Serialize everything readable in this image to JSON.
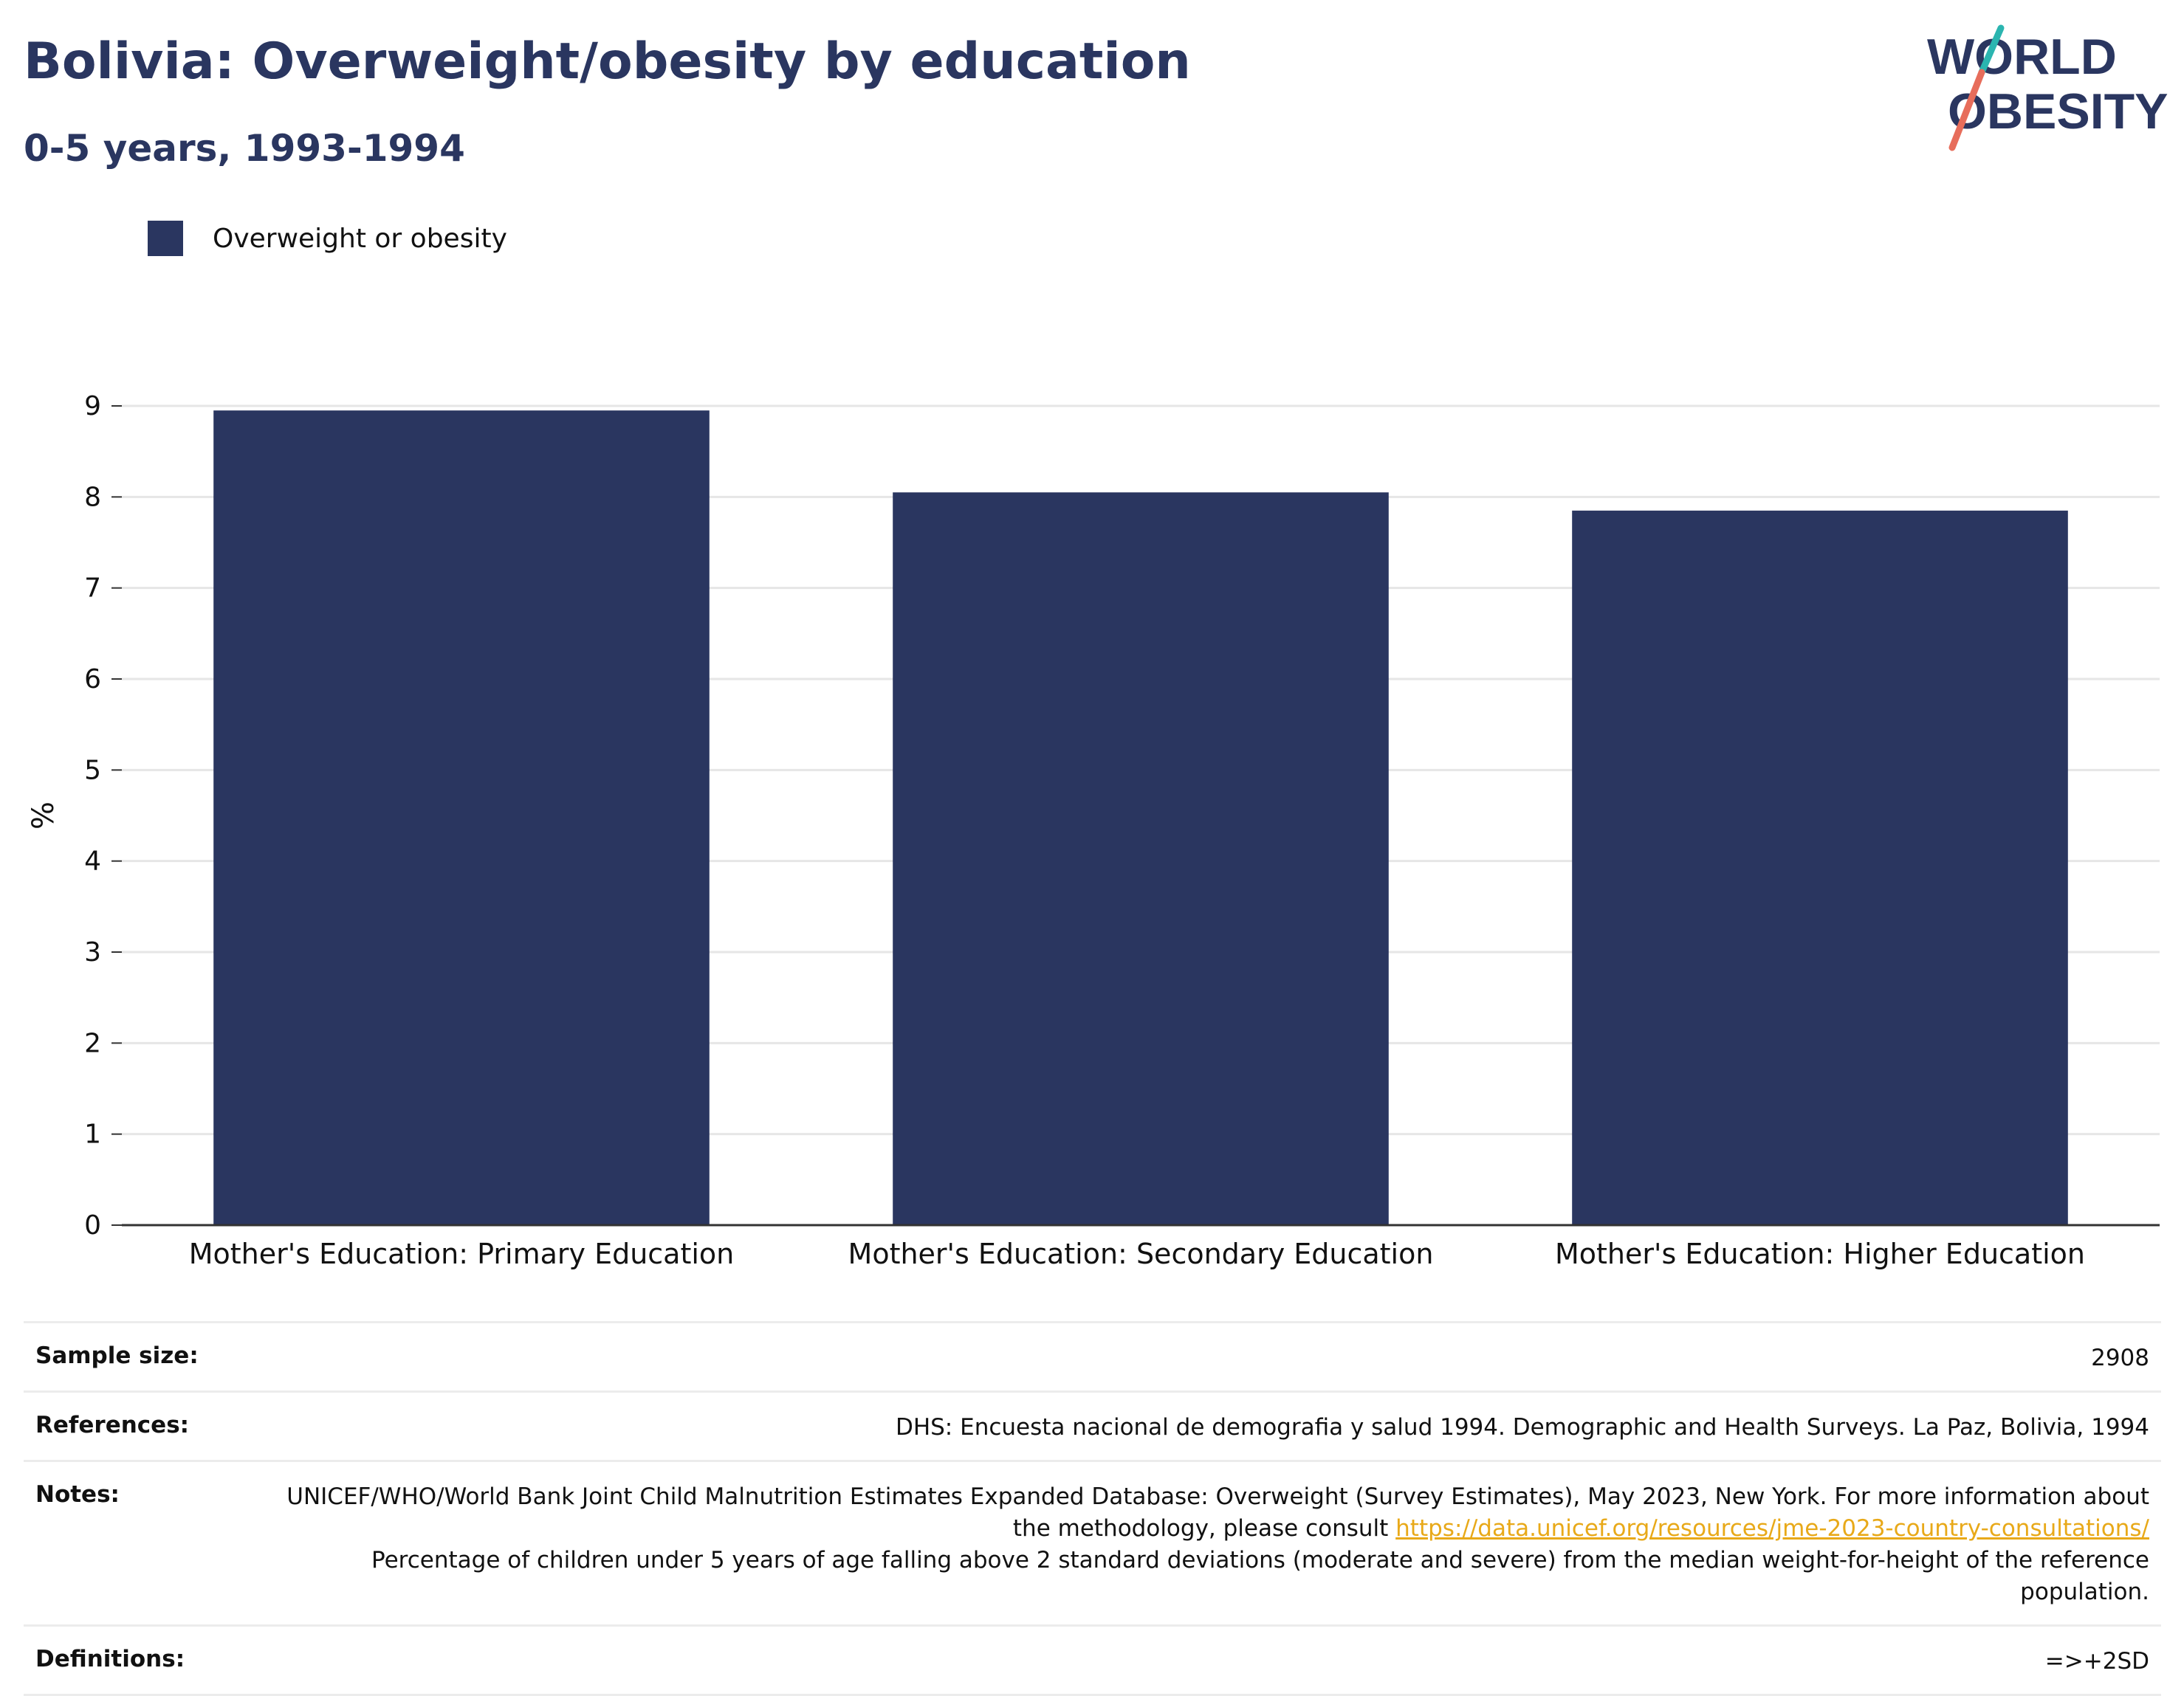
{
  "header": {
    "title": "Bolivia: Overweight/obesity by education",
    "subtitle": "0-5 years, 1993-1994"
  },
  "logo": {
    "line1": "WORLD",
    "line2": "OBESITY",
    "colors": {
      "text": "#2a3660",
      "accent_teal": "#2bb5b0",
      "accent_coral": "#e76d5b"
    }
  },
  "legend": {
    "label": "Overweight or obesity",
    "color": "#2a3660"
  },
  "chart_data": {
    "type": "bar",
    "categories": [
      "Mother's Education: Primary Education",
      "Mother's Education: Secondary Education",
      "Mother's Education: Higher Education"
    ],
    "series": [
      {
        "name": "Overweight or obesity",
        "values": [
          8.95,
          8.05,
          7.85
        ],
        "color": "#2a3660"
      }
    ],
    "ylabel": "%",
    "ylim": [
      0,
      9
    ],
    "yticks": [
      0,
      1,
      2,
      3,
      4,
      5,
      6,
      7,
      8,
      9
    ],
    "grid": true,
    "legend_position": "top-left"
  },
  "meta": {
    "sample_size_label": "Sample size:",
    "sample_size_value": "2908",
    "references_label": "References:",
    "references_value": "DHS: Encuesta nacional de demografia y salud 1994. Demographic and Health Surveys. La Paz, Bolivia, 1994",
    "notes_label": "Notes:",
    "notes_text_1": "UNICEF/WHO/World Bank Joint Child Malnutrition Estimates Expanded Database: Overweight (Survey Estimates), May 2023, New York. For more information about the methodology, please consult ",
    "notes_link": "https://data.unicef.org/resources/jme-2023-country-consultations/",
    "notes_text_2": "Percentage of children under 5 years of age falling above 2 standard deviations (moderate and severe) from the median weight-for-height of the reference population.",
    "definitions_label": "Definitions:",
    "definitions_value": "=>+2SD"
  }
}
